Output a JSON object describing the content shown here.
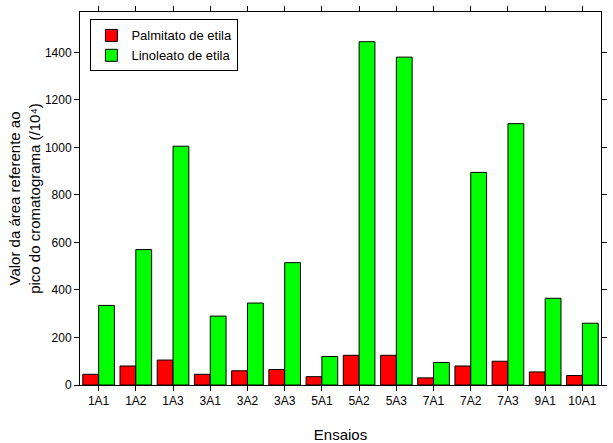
{
  "chart_data": {
    "type": "bar",
    "xlabel": "Ensaios",
    "ylabel": "Valor da área referente ao\npico do cromatograma (/10⁴)",
    "categories": [
      "1A1",
      "1A2",
      "1A3",
      "3A1",
      "3A2",
      "3A3",
      "5A1",
      "5A2",
      "5A3",
      "7A1",
      "7A2",
      "7A3",
      "9A1",
      "10A1"
    ],
    "series": [
      {
        "name": "Palmitato de etila",
        "color": "#ff0000",
        "values": [
          45,
          80,
          105,
          45,
          60,
          65,
          35,
          125,
          125,
          30,
          80,
          100,
          55,
          40
        ]
      },
      {
        "name": "Linoleato de etila",
        "color": "#00ff00",
        "values": [
          335,
          570,
          1005,
          290,
          345,
          515,
          120,
          1445,
          1380,
          95,
          895,
          1100,
          365,
          260
        ]
      }
    ],
    "ylim": [
      0,
      1570
    ],
    "yticks": [
      0,
      200,
      400,
      600,
      800,
      1000,
      1200,
      1400
    ],
    "grid": false,
    "legend": "upper left"
  }
}
